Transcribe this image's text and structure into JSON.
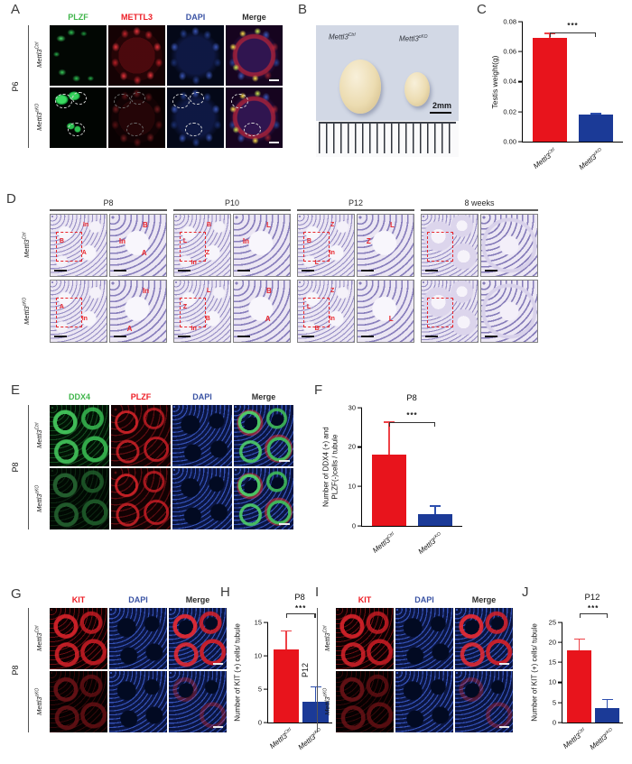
{
  "colors": {
    "label_green": "#3fb54a",
    "label_red": "#ed1c24",
    "label_blue": "#3a53a4",
    "label_dark": "#2b2b2b",
    "bar_red": "#e8141c",
    "bar_blue": "#1b3a97",
    "annotation_red": "#e8262c"
  },
  "common": {
    "gene": "Mettl3",
    "sup_ctrl": "Ctrl",
    "sup_cko": "cKO",
    "genotype_ctrl": "Mettl3Ctrl",
    "genotype_cko": "Mettl3cKO"
  },
  "panels": {
    "A": {
      "label": "A",
      "age": "P6",
      "headers": [
        "PLZF",
        "METTL3",
        "DAPI",
        "Merge"
      ]
    },
    "B": {
      "label": "B",
      "scale_label": "2mm"
    },
    "C": {
      "label": "C"
    },
    "D": {
      "label": "D",
      "group_headers": [
        "P8",
        "P10",
        "P12",
        "8 weeks"
      ],
      "row_ctrl_labels": [
        [
          "In",
          "B",
          "A"
        ],
        [
          "B",
          "In",
          "A"
        ],
        [
          "B",
          "L",
          "Z",
          "In"
        ],
        [
          "L",
          "In"
        ],
        [
          "Z",
          "B",
          "In",
          "L"
        ],
        [
          "L",
          "Z"
        ],
        [],
        []
      ],
      "row_cko_labels": [
        [
          "A",
          "In"
        ],
        [
          "In",
          "A"
        ],
        [
          "L",
          "Z",
          "B",
          "In"
        ],
        [
          "B",
          "A"
        ],
        [
          "Z",
          "L",
          "In",
          "B"
        ],
        [
          "L"
        ],
        [],
        []
      ]
    },
    "E": {
      "label": "E",
      "age": "P8",
      "headers": [
        "DDX4",
        "PLZF",
        "DAPI",
        "Merge"
      ]
    },
    "F": {
      "label": "F"
    },
    "G": {
      "label": "G",
      "age": "P8",
      "headers": [
        "KIT",
        "DAPI",
        "Merge"
      ]
    },
    "H": {
      "label": "H"
    },
    "I": {
      "label": "I",
      "age": "P12",
      "headers": [
        "KIT",
        "DAPI",
        "Merge"
      ]
    },
    "J": {
      "label": "J"
    }
  },
  "chart_data": [
    {
      "id": "C",
      "type": "bar",
      "title": "",
      "ylabel": "Testis weight(g)",
      "categories": [
        "Mettl3Ctrl",
        "Mettl3cKO"
      ],
      "values": [
        0.069,
        0.018
      ],
      "errors": [
        0.0035,
        0.001
      ],
      "ylim": [
        0,
        0.08
      ],
      "yticks": [
        "0.00",
        "0.02",
        "0.04",
        "0.06",
        "0.08"
      ],
      "significance": "***",
      "bar_colors": [
        "#e8141c",
        "#1b3a97"
      ]
    },
    {
      "id": "F",
      "type": "bar",
      "title": "P8",
      "ylabel": "Number of DDX4 (+) and PLZF(-)cells / tubule",
      "ylabel_lines": [
        "Number of DDX4 (+) and",
        "PLZF(-)cells / tubule"
      ],
      "categories": [
        "Mettl3Ctrl",
        "Mettl3cKO"
      ],
      "values": [
        18,
        3
      ],
      "errors": [
        8.5,
        2.2
      ],
      "ylim": [
        0,
        30
      ],
      "yticks": [
        "0",
        "10",
        "20",
        "30"
      ],
      "significance": "***",
      "bar_colors": [
        "#e8141c",
        "#1b3a97"
      ]
    },
    {
      "id": "H",
      "type": "bar",
      "title": "P8",
      "ylabel": "Number of KIT (+) cells/ tubule",
      "categories": [
        "Mettl3Ctrl",
        "Mettl3cKO"
      ],
      "values": [
        11,
        3.1
      ],
      "errors": [
        2.8,
        2.3
      ],
      "ylim": [
        0,
        15
      ],
      "yticks": [
        "0",
        "5",
        "10",
        "15"
      ],
      "significance": "***",
      "bar_colors": [
        "#e8141c",
        "#1b3a97"
      ]
    },
    {
      "id": "J",
      "type": "bar",
      "title": "P12",
      "ylabel": "Number of KIT (+) cells/ tubule",
      "categories": [
        "Mettl3Ctrl",
        "Mettl3cKO"
      ],
      "values": [
        18,
        3.6
      ],
      "errors": [
        3,
        2.3
      ],
      "ylim": [
        0,
        25
      ],
      "yticks": [
        "0",
        "5",
        "10",
        "15",
        "20",
        "25"
      ],
      "significance": "***",
      "bar_colors": [
        "#e8141c",
        "#1b3a97"
      ]
    }
  ]
}
